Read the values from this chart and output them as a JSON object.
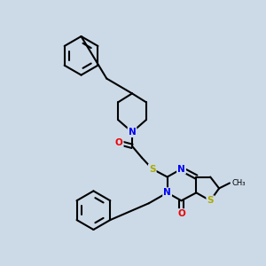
{
  "background_color": "#ccdae8",
  "bond_color": "#000000",
  "bond_width": 1.5,
  "atom_colors": {
    "N": "#0000ee",
    "O": "#ee0000",
    "S": "#aaaa00",
    "C": "#000000"
  },
  "font_size": 7.5,
  "fig_size": [
    3.0,
    3.0
  ],
  "dpi": 100
}
